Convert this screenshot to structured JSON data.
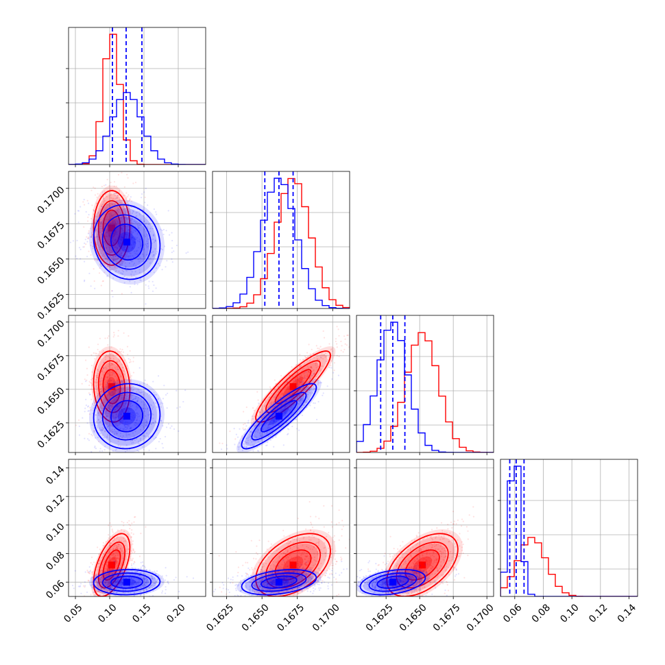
{
  "chart_data": {
    "type": "corner",
    "colors": {
      "red": "#ff0000",
      "blue": "#0000ff",
      "grid": "#b0b0b0"
    },
    "series": [
      {
        "color": "red",
        "mean": [
          0.103,
          0.1672,
          0.1652,
          0.072
        ],
        "sd": [
          0.012,
          0.0012,
          0.0012,
          0.01
        ],
        "corr": [
          [
            0,
            1,
            0
          ],
          [
            0,
            2,
            -0.1
          ],
          [
            0,
            3,
            0.55
          ],
          [
            1,
            2,
            0.88
          ],
          [
            1,
            3,
            0.45
          ],
          [
            2,
            3,
            0.5
          ]
        ]
      },
      {
        "color": "blue",
        "mean": [
          0.125,
          0.1662,
          0.163,
          0.06
        ],
        "sd": [
          0.022,
          0.0012,
          0.0011,
          0.004
        ],
        "corr": [
          [
            0,
            1,
            -0.1
          ],
          [
            0,
            2,
            0.05
          ],
          [
            0,
            3,
            0.05
          ],
          [
            1,
            2,
            0.88
          ],
          [
            1,
            3,
            0.35
          ],
          [
            2,
            3,
            0.35
          ]
        ]
      }
    ],
    "quantiles": [
      [
        0.104,
        0.124,
        0.147
      ],
      [
        0.1652,
        0.1662,
        0.1672
      ],
      [
        0.1621,
        0.163,
        0.1639
      ],
      [
        0.0565,
        0.061,
        0.0665
      ]
    ],
    "params": [
      {
        "range": [
          0.04,
          0.24
        ],
        "ticks": [
          0.05,
          0.1,
          0.15,
          0.2
        ],
        "ticklabels": [
          "0.05",
          "0.10",
          "0.15",
          "0.20"
        ]
      },
      {
        "range": [
          0.1615,
          0.1712
        ],
        "ticks": [
          0.1625,
          0.165,
          0.1675,
          0.17
        ],
        "ticklabels": [
          "0.1625",
          "0.1650",
          "0.1675",
          "0.1700"
        ]
      },
      {
        "range": [
          0.1603,
          0.1705
        ],
        "ticks": [
          0.1625,
          0.165,
          0.1675,
          0.17
        ],
        "ticklabels": [
          "0.1625",
          "0.1650",
          "0.1675",
          "0.1700"
        ]
      },
      {
        "range": [
          0.05,
          0.146
        ],
        "ticks": [
          0.06,
          0.08,
          0.1,
          0.12,
          0.14
        ],
        "ticklabels": [
          "0.06",
          "0.08",
          "0.10",
          "0.12",
          "0.14"
        ]
      }
    ],
    "grid": true
  }
}
